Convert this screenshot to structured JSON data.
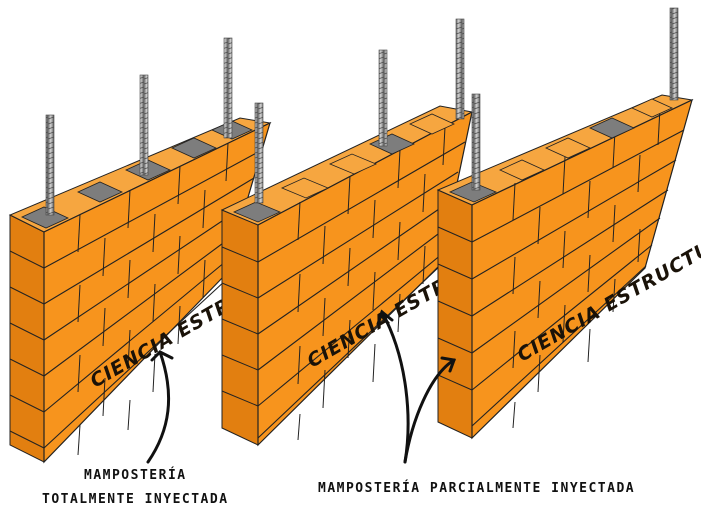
{
  "walls": [
    {
      "name": "wall-totalmente-inyectada",
      "watermark": "CIENCIA ESTRUCTURAL"
    },
    {
      "name": "wall-parcialmente-inyectada-1",
      "watermark": "CIENCIA ESTRUCTURAL"
    },
    {
      "name": "wall-parcialmente-inyectada-2",
      "watermark": "CIENCIA ESTRUCTURAL"
    }
  ],
  "labels": {
    "left_line1": "MAMPOSTERÍA",
    "left_line2": "TOTALMENTE INYECTADA",
    "right": "MAMPOSTERÍA PARCIALMENTE INYECTADA"
  },
  "colors": {
    "block_front": "#f7941d",
    "block_side": "#e27f10",
    "block_top": "#f6a640",
    "mortar_line": "#222222",
    "rebar": "#9a9a9a",
    "grout": "#7d7d7d"
  }
}
